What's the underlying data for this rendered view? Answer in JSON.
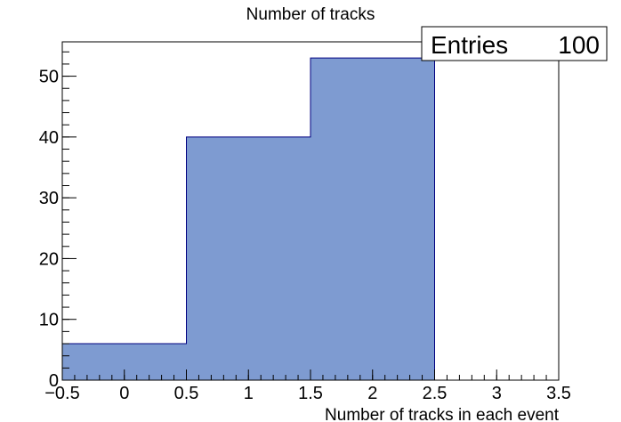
{
  "chart_data": {
    "type": "bar",
    "title": "Number of tracks",
    "xlabel": "Number of tracks in each event",
    "ylabel": "",
    "bin_edges": [
      -0.5,
      0.5,
      1.5,
      2.5,
      3.5
    ],
    "values": [
      6,
      40,
      53,
      0
    ],
    "xlim": [
      -0.5,
      3.5
    ],
    "ylim": [
      0,
      55.65
    ],
    "x_ticks": [
      -0.5,
      0,
      0.5,
      1,
      1.5,
      2,
      2.5,
      3,
      3.5
    ],
    "x_tick_labels": [
      "−0.5",
      "0",
      "0.5",
      "1",
      "1.5",
      "2",
      "2.5",
      "3",
      "3.5"
    ],
    "y_ticks": [
      0,
      10,
      20,
      30,
      40,
      50
    ],
    "y_tick_labels": [
      "0",
      "10",
      "20",
      "30",
      "40",
      "50"
    ],
    "fill_color": "#7e9bd1",
    "line_color": "#000080",
    "grid": false,
    "stats_box": {
      "label": "Entries",
      "value": "100"
    }
  }
}
